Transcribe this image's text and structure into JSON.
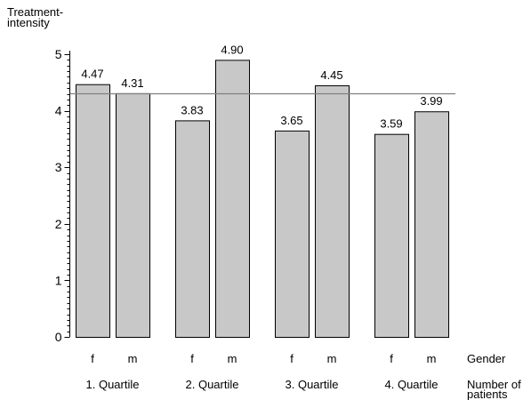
{
  "chart_data": {
    "type": "bar",
    "ylabel": "Treatment-\nintensity",
    "ylim": [
      0,
      5
    ],
    "yticks": [
      0,
      1,
      2,
      3,
      4,
      5
    ],
    "gender_axis_label": "Gender",
    "group_axis_label": "Number of\npatients",
    "reference_line": 4.31,
    "grid": false,
    "groups": [
      {
        "label": "1. Quartile",
        "bars": [
          {
            "gender": "f",
            "value": 4.47,
            "value_label": "4.47"
          },
          {
            "gender": "m",
            "value": 4.31,
            "value_label": "4.31"
          }
        ]
      },
      {
        "label": "2. Quartile",
        "bars": [
          {
            "gender": "f",
            "value": 3.83,
            "value_label": "3.83"
          },
          {
            "gender": "m",
            "value": 4.9,
            "value_label": "4.90"
          }
        ]
      },
      {
        "label": "3. Quartile",
        "bars": [
          {
            "gender": "f",
            "value": 3.65,
            "value_label": "3.65"
          },
          {
            "gender": "m",
            "value": 4.45,
            "value_label": "4.45"
          }
        ]
      },
      {
        "label": "4. Quartile",
        "bars": [
          {
            "gender": "f",
            "value": 3.59,
            "value_label": "3.59"
          },
          {
            "gender": "m",
            "value": 3.99,
            "value_label": "3.99"
          }
        ]
      }
    ],
    "colors": {
      "bar_fill": "#c8c8c8",
      "bar_stroke": "#000000",
      "reference_line": "#808080"
    }
  }
}
